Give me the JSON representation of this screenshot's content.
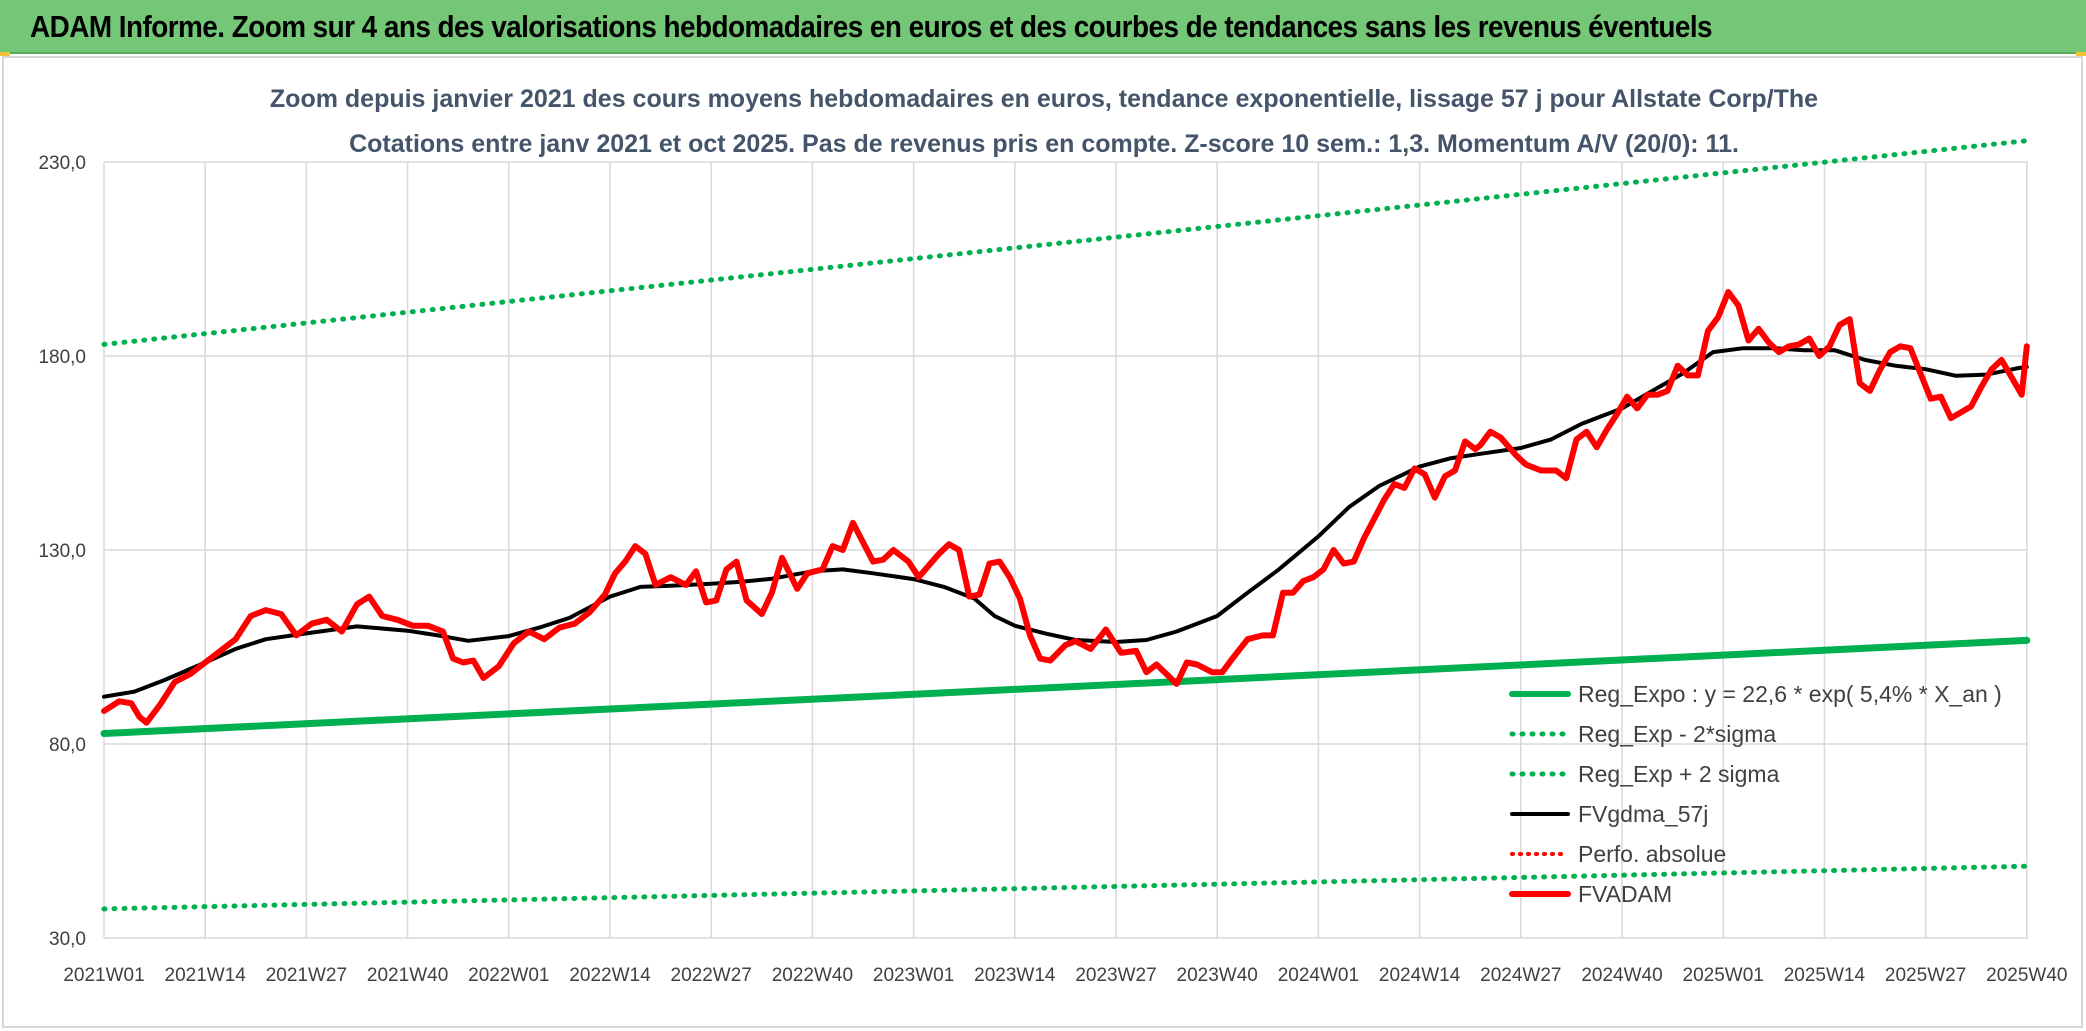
{
  "banner": {
    "title": "ADAM Informe. Zoom sur 4 ans des valorisations hebdomadaires en euros et des courbes de tendances sans les revenus éventuels"
  },
  "colors": {
    "banner_bg": "#74c776",
    "reg_green": "#00b050",
    "price_red": "#ff0000",
    "smooth_black": "#000000",
    "grid": "#d9d9d9",
    "title_text": "#44546a"
  },
  "chart_data": {
    "type": "line",
    "title": "Zoom depuis janvier 2021 des cours moyens hebdomadaires en euros, tendance exponentielle, lissage 57 j pour Allstate Corp/The",
    "subtitle": "Cotations entre janv 2021 et oct 2025. Pas de revenus pris en compte. Z-score 10 sem.: 1,3. Momentum A/V (20/0): 11.",
    "xlabel": "",
    "ylabel": "",
    "ylim": [
      30,
      230
    ],
    "yticks": [
      "30,0",
      "80,0",
      "130,0",
      "180,0",
      "230,0"
    ],
    "xticks": [
      "2021W01",
      "2021W14",
      "2021W27",
      "2021W40",
      "2022W01",
      "2022W14",
      "2022W27",
      "2022W40",
      "2023W01",
      "2023W14",
      "2023W27",
      "2023W40",
      "2024W01",
      "2024W14",
      "2024W27",
      "2024W40",
      "2025W01",
      "2025W14",
      "2025W27",
      "2025W40"
    ],
    "grid": true,
    "legend_position": "bottom-right",
    "series": [
      {
        "name": "Reg_Expo : y = 22,6 * exp( 5,4% *  X_an )",
        "style": "solid-green-thick",
        "points": [
          [
            0,
            82.7
          ],
          [
            19,
            106.7
          ]
        ]
      },
      {
        "name": "Reg_Exp - 2*sigma",
        "style": "dotted-green",
        "points": [
          [
            0,
            37.5
          ],
          [
            19,
            48.5
          ]
        ]
      },
      {
        "name": "Reg_Exp + 2 sigma",
        "style": "dotted-green",
        "points": [
          [
            0,
            183
          ],
          [
            19,
            235.5
          ]
        ]
      },
      {
        "name": "FVgdma_57j",
        "style": "solid-black",
        "points": [
          [
            0,
            92.2
          ],
          [
            0.3,
            93.5
          ],
          [
            0.6,
            96.5
          ],
          [
            1.0,
            101
          ],
          [
            1.3,
            104.5
          ],
          [
            1.6,
            107
          ],
          [
            2.0,
            108.5
          ],
          [
            2.5,
            110.3
          ],
          [
            3.0,
            109.2
          ],
          [
            3.3,
            108
          ],
          [
            3.6,
            106.6
          ],
          [
            4.0,
            107.8
          ],
          [
            4.3,
            110
          ],
          [
            4.6,
            112.5
          ],
          [
            5.0,
            118
          ],
          [
            5.3,
            120.5
          ],
          [
            5.6,
            120.8
          ],
          [
            6.0,
            121.3
          ],
          [
            6.3,
            121.8
          ],
          [
            6.6,
            122.6
          ],
          [
            7.0,
            124.5
          ],
          [
            7.3,
            125
          ],
          [
            7.6,
            124
          ],
          [
            8.0,
            122.5
          ],
          [
            8.3,
            120.5
          ],
          [
            8.6,
            117.5
          ],
          [
            8.8,
            113
          ],
          [
            9.0,
            110.5
          ],
          [
            9.3,
            108.5
          ],
          [
            9.6,
            106.8
          ],
          [
            10.0,
            106.3
          ],
          [
            10.3,
            106.8
          ],
          [
            10.6,
            109
          ],
          [
            11.0,
            113
          ],
          [
            11.3,
            119
          ],
          [
            11.6,
            124.8
          ],
          [
            12.0,
            133.5
          ],
          [
            12.3,
            141
          ],
          [
            12.6,
            146.5
          ],
          [
            13.0,
            151.5
          ],
          [
            13.3,
            153.6
          ],
          [
            13.6,
            154.8
          ],
          [
            14.0,
            156.3
          ],
          [
            14.3,
            158.5
          ],
          [
            14.6,
            162.5
          ],
          [
            15.0,
            166.5
          ],
          [
            15.3,
            171
          ],
          [
            15.6,
            175.5
          ],
          [
            15.9,
            181
          ],
          [
            16.2,
            182
          ],
          [
            16.5,
            182
          ],
          [
            16.8,
            181.5
          ],
          [
            17.1,
            181.5
          ],
          [
            17.4,
            179
          ],
          [
            17.7,
            177.5
          ],
          [
            18.0,
            176.6
          ],
          [
            18.3,
            174.9
          ],
          [
            18.6,
            175.2
          ],
          [
            18.9,
            176.8
          ],
          [
            19.0,
            177.2
          ]
        ]
      },
      {
        "name": "Perfo. absolue",
        "style": "dotted-red",
        "points": []
      },
      {
        "name": "FVADAM",
        "style": "solid-red-thick",
        "points": [
          [
            0,
            88.5
          ],
          [
            0.15,
            91
          ],
          [
            0.27,
            90.5
          ],
          [
            0.35,
            87
          ],
          [
            0.42,
            85.5
          ],
          [
            0.55,
            90
          ],
          [
            0.7,
            96
          ],
          [
            0.85,
            98
          ],
          [
            0.95,
            100
          ],
          [
            1.1,
            103
          ],
          [
            1.3,
            107
          ],
          [
            1.45,
            113
          ],
          [
            1.6,
            114.5
          ],
          [
            1.75,
            113.5
          ],
          [
            1.9,
            108
          ],
          [
            2.05,
            111
          ],
          [
            2.2,
            112
          ],
          [
            2.35,
            109
          ],
          [
            2.5,
            116
          ],
          [
            2.62,
            118
          ],
          [
            2.75,
            113
          ],
          [
            2.9,
            112
          ],
          [
            3.05,
            110.5
          ],
          [
            3.2,
            110.5
          ],
          [
            3.35,
            109
          ],
          [
            3.45,
            102
          ],
          [
            3.55,
            101
          ],
          [
            3.65,
            101.5
          ],
          [
            3.75,
            97
          ],
          [
            3.9,
            100
          ],
          [
            4.05,
            106
          ],
          [
            4.2,
            109
          ],
          [
            4.35,
            107
          ],
          [
            4.5,
            110
          ],
          [
            4.65,
            111
          ],
          [
            4.8,
            114
          ],
          [
            4.95,
            118.5
          ],
          [
            5.05,
            124
          ],
          [
            5.15,
            127
          ],
          [
            5.25,
            131
          ],
          [
            5.35,
            129
          ],
          [
            5.45,
            121
          ],
          [
            5.6,
            123
          ],
          [
            5.75,
            121
          ],
          [
            5.85,
            124.5
          ],
          [
            5.95,
            116.5
          ],
          [
            6.05,
            117
          ],
          [
            6.15,
            125
          ],
          [
            6.25,
            127
          ],
          [
            6.35,
            117
          ],
          [
            6.5,
            113.5
          ],
          [
            6.6,
            119
          ],
          [
            6.7,
            128
          ],
          [
            6.85,
            120
          ],
          [
            6.95,
            124
          ],
          [
            7.1,
            125
          ],
          [
            7.2,
            131
          ],
          [
            7.3,
            130
          ],
          [
            7.4,
            137
          ],
          [
            7.5,
            132
          ],
          [
            7.6,
            127
          ],
          [
            7.7,
            127.5
          ],
          [
            7.8,
            130
          ],
          [
            7.95,
            127
          ],
          [
            8.05,
            123
          ],
          [
            8.15,
            126
          ],
          [
            8.25,
            129
          ],
          [
            8.35,
            131.5
          ],
          [
            8.45,
            130
          ],
          [
            8.55,
            118
          ],
          [
            8.65,
            118.5
          ],
          [
            8.75,
            126.5
          ],
          [
            8.85,
            127
          ],
          [
            8.95,
            123
          ],
          [
            9.05,
            117.5
          ],
          [
            9.15,
            108
          ],
          [
            9.25,
            102
          ],
          [
            9.35,
            101.5
          ],
          [
            9.5,
            105.5
          ],
          [
            9.6,
            106.5
          ],
          [
            9.75,
            104.5
          ],
          [
            9.9,
            109.5
          ],
          [
            10.05,
            103.5
          ],
          [
            10.2,
            104
          ],
          [
            10.3,
            98.5
          ],
          [
            10.4,
            100.5
          ],
          [
            10.5,
            98
          ],
          [
            10.6,
            95.5
          ],
          [
            10.7,
            101
          ],
          [
            10.8,
            100.5
          ],
          [
            10.95,
            98.5
          ],
          [
            11.05,
            98.5
          ],
          [
            11.15,
            102
          ],
          [
            11.3,
            107
          ],
          [
            11.45,
            108
          ],
          [
            11.55,
            108
          ],
          [
            11.65,
            119
          ],
          [
            11.75,
            119
          ],
          [
            11.85,
            122
          ],
          [
            11.95,
            123
          ],
          [
            12.05,
            125
          ],
          [
            12.15,
            130
          ],
          [
            12.25,
            126.5
          ],
          [
            12.35,
            127
          ],
          [
            12.45,
            133
          ],
          [
            12.55,
            138
          ],
          [
            12.65,
            143
          ],
          [
            12.75,
            147
          ],
          [
            12.85,
            146
          ],
          [
            12.95,
            151
          ],
          [
            13.05,
            149.5
          ],
          [
            13.15,
            143.5
          ],
          [
            13.25,
            149
          ],
          [
            13.35,
            150.5
          ],
          [
            13.45,
            158
          ],
          [
            13.55,
            156
          ],
          [
            13.6,
            157
          ],
          [
            13.7,
            160.5
          ],
          [
            13.8,
            159
          ],
          [
            13.95,
            154.5
          ],
          [
            14.05,
            152
          ],
          [
            14.2,
            150.5
          ],
          [
            14.35,
            150.5
          ],
          [
            14.45,
            148.5
          ],
          [
            14.55,
            158.5
          ],
          [
            14.65,
            160.5
          ],
          [
            14.75,
            156.5
          ],
          [
            14.85,
            161
          ],
          [
            14.95,
            165
          ],
          [
            15.05,
            169.5
          ],
          [
            15.15,
            166.5
          ],
          [
            15.25,
            170
          ],
          [
            15.35,
            170
          ],
          [
            15.45,
            171
          ],
          [
            15.55,
            177.5
          ],
          [
            15.65,
            175
          ],
          [
            15.75,
            175
          ],
          [
            15.85,
            186.5
          ],
          [
            15.95,
            190
          ],
          [
            16.05,
            196.5
          ],
          [
            16.15,
            193
          ],
          [
            16.25,
            184
          ],
          [
            16.35,
            187
          ],
          [
            16.45,
            183.5
          ],
          [
            16.55,
            181
          ],
          [
            16.65,
            182.5
          ],
          [
            16.75,
            183
          ],
          [
            16.85,
            184.5
          ],
          [
            16.95,
            180
          ],
          [
            17.05,
            182.5
          ],
          [
            17.15,
            188
          ],
          [
            17.25,
            189.5
          ],
          [
            17.35,
            173
          ],
          [
            17.45,
            171
          ],
          [
            17.55,
            176.5
          ],
          [
            17.65,
            181
          ],
          [
            17.75,
            182.5
          ],
          [
            17.85,
            182
          ],
          [
            17.95,
            175.5
          ],
          [
            18.05,
            169
          ],
          [
            18.15,
            169.5
          ],
          [
            18.25,
            164
          ],
          [
            18.35,
            165.5
          ],
          [
            18.45,
            167
          ],
          [
            18.55,
            172
          ],
          [
            18.65,
            176.5
          ],
          [
            18.75,
            179
          ],
          [
            18.85,
            174.5
          ],
          [
            18.95,
            170
          ],
          [
            19.0,
            182.5
          ]
        ]
      }
    ]
  }
}
